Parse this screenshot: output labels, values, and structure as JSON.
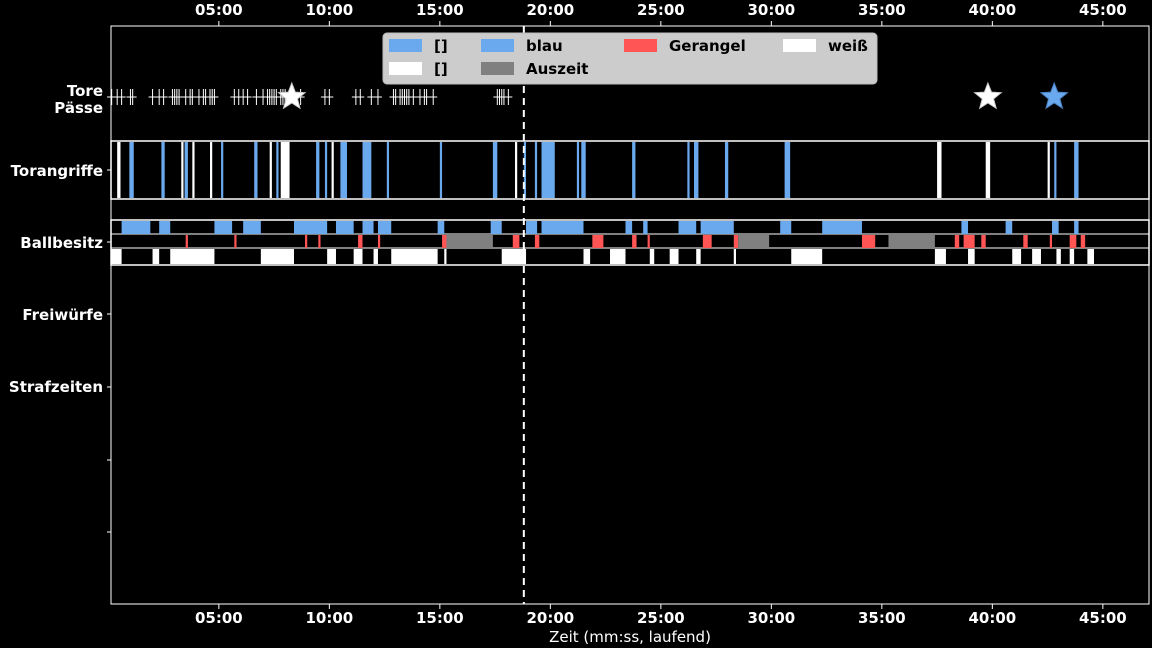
{
  "chart_data": {
    "type": "timeline",
    "xlabel": "Zeit (mm:ss, laufend)",
    "x_unit": "minutes",
    "xlim": [
      0,
      47
    ],
    "x_ticks": [
      {
        "value": 5,
        "label": "05:00"
      },
      {
        "value": 10,
        "label": "10:00"
      },
      {
        "value": 15,
        "label": "15:00"
      },
      {
        "value": 20,
        "label": "20:00"
      },
      {
        "value": 25,
        "label": "25:00"
      },
      {
        "value": 30,
        "label": "30:00"
      },
      {
        "value": 35,
        "label": "35:00"
      },
      {
        "value": 40,
        "label": "40:00"
      },
      {
        "value": 45,
        "label": "45:00"
      }
    ],
    "halftime_marker": 18.8,
    "row_labels": {
      "tore_passe": "Tore\nPässe",
      "torangriffe": "Torangriffe",
      "ballbesitz": "Ballbesitz",
      "freiwuerfe": "Freiwürfe",
      "strafzeiten": "Strafzeiten"
    },
    "colors": {
      "blau": "#6aa9ee",
      "weiss": "#ffffff",
      "gerangel": "#ff5555",
      "auszeit": "#808080",
      "background": "#000000"
    },
    "legend": {
      "placement": "top-center",
      "entries": [
        {
          "label": "[]",
          "color": "#6aa9ee"
        },
        {
          "label": "[]",
          "color": "#ffffff"
        },
        {
          "label": "blau",
          "color": "#6aa9ee"
        },
        {
          "label": "Auszeit",
          "color": "#808080"
        },
        {
          "label": "Gerangel",
          "color": "#ff5555"
        },
        {
          "label": "weiß",
          "color": "#ffffff"
        }
      ]
    },
    "goals": [
      {
        "team": "weiss",
        "t": 8.3
      },
      {
        "team": "weiss",
        "t": 39.8
      },
      {
        "team": "blau",
        "t": 42.8
      }
    ],
    "passes": [
      0.15,
      0.4,
      0.6,
      1.0,
      1.1,
      2.0,
      2.3,
      2.5,
      2.9,
      3.0,
      3.1,
      3.2,
      3.5,
      3.7,
      3.8,
      4.1,
      4.3,
      4.4,
      4.6,
      4.7,
      4.8,
      5.7,
      5.9,
      6.1,
      6.3,
      6.7,
      7.0,
      7.2,
      7.3,
      7.4,
      7.5,
      7.6,
      7.8,
      7.9,
      8.0,
      8.7,
      9.8,
      10.0,
      11.2,
      11.4,
      11.9,
      12.2,
      12.9,
      13.0,
      13.2,
      13.3,
      13.4,
      13.5,
      13.6,
      13.8,
      14.1,
      14.3,
      14.4,
      14.7,
      17.6,
      17.7,
      17.8,
      17.9,
      18.1
    ],
    "attacks": [
      {
        "team": "weiss",
        "start": 0.4,
        "end": 0.55
      },
      {
        "team": "blau",
        "start": 0.95,
        "end": 1.15
      },
      {
        "team": "blau",
        "start": 2.4,
        "end": 2.55
      },
      {
        "team": "weiss",
        "start": 3.3,
        "end": 3.4
      },
      {
        "team": "blau",
        "start": 3.45,
        "end": 3.6
      },
      {
        "team": "weiss",
        "start": 3.8,
        "end": 3.9
      },
      {
        "team": "weiss",
        "start": 4.6,
        "end": 4.7
      },
      {
        "team": "blau",
        "start": 5.1,
        "end": 5.2
      },
      {
        "team": "blau",
        "start": 6.6,
        "end": 6.75
      },
      {
        "team": "weiss",
        "start": 7.3,
        "end": 7.4
      },
      {
        "team": "blau",
        "start": 7.6,
        "end": 7.7
      },
      {
        "team": "weiss",
        "start": 7.8,
        "end": 8.2
      },
      {
        "team": "blau",
        "start": 9.4,
        "end": 9.55
      },
      {
        "team": "blau",
        "start": 9.8,
        "end": 9.9
      },
      {
        "team": "weiss",
        "start": 10.1,
        "end": 10.2
      },
      {
        "team": "blau",
        "start": 10.5,
        "end": 10.8
      },
      {
        "team": "blau",
        "start": 11.5,
        "end": 11.9
      },
      {
        "team": "blau",
        "start": 12.6,
        "end": 12.7
      },
      {
        "team": "blau",
        "start": 15.0,
        "end": 15.1
      },
      {
        "team": "blau",
        "start": 17.4,
        "end": 17.6
      },
      {
        "team": "weiss",
        "start": 18.4,
        "end": 18.5
      },
      {
        "team": "blau",
        "start": 18.8,
        "end": 18.9
      },
      {
        "team": "blau",
        "start": 19.3,
        "end": 19.4
      },
      {
        "team": "blau",
        "start": 19.6,
        "end": 20.2
      },
      {
        "team": "blau",
        "start": 21.2,
        "end": 21.3
      },
      {
        "team": "blau",
        "start": 21.4,
        "end": 21.6
      },
      {
        "team": "blau",
        "start": 23.7,
        "end": 23.85
      },
      {
        "team": "blau",
        "start": 26.2,
        "end": 26.3
      },
      {
        "team": "blau",
        "start": 26.5,
        "end": 26.7
      },
      {
        "team": "blau",
        "start": 27.9,
        "end": 28.05
      },
      {
        "team": "blau",
        "start": 30.6,
        "end": 30.85
      },
      {
        "team": "weiss",
        "start": 37.5,
        "end": 37.7
      },
      {
        "team": "weiss",
        "start": 39.7,
        "end": 39.9
      },
      {
        "team": "weiss",
        "start": 42.5,
        "end": 42.6
      },
      {
        "team": "blau",
        "start": 42.8,
        "end": 42.9
      },
      {
        "team": "blau",
        "start": 43.7,
        "end": 43.9
      }
    ],
    "possession": {
      "blau": [
        {
          "start": 0.6,
          "end": 1.9
        },
        {
          "start": 2.3,
          "end": 2.8
        },
        {
          "start": 4.8,
          "end": 5.6
        },
        {
          "start": 6.1,
          "end": 6.9
        },
        {
          "start": 8.4,
          "end": 9.9
        },
        {
          "start": 10.3,
          "end": 11.1
        },
        {
          "start": 11.5,
          "end": 12.0
        },
        {
          "start": 12.2,
          "end": 12.8
        },
        {
          "start": 14.9,
          "end": 15.2
        },
        {
          "start": 17.3,
          "end": 17.8
        },
        {
          "start": 18.9,
          "end": 19.4
        },
        {
          "start": 19.6,
          "end": 21.5
        },
        {
          "start": 23.4,
          "end": 23.7
        },
        {
          "start": 24.2,
          "end": 24.4
        },
        {
          "start": 25.8,
          "end": 26.6
        },
        {
          "start": 26.8,
          "end": 27.5
        },
        {
          "start": 27.4,
          "end": 28.3
        },
        {
          "start": 30.4,
          "end": 30.9
        },
        {
          "start": 32.3,
          "end": 34.1
        },
        {
          "start": 38.6,
          "end": 38.9
        },
        {
          "start": 40.6,
          "end": 40.9
        },
        {
          "start": 42.7,
          "end": 43.0
        },
        {
          "start": 43.7,
          "end": 43.9
        }
      ],
      "gerangel": [
        {
          "start": 3.5,
          "end": 3.6
        },
        {
          "start": 5.7,
          "end": 5.8
        },
        {
          "start": 8.9,
          "end": 9.0
        },
        {
          "start": 9.5,
          "end": 9.6
        },
        {
          "start": 11.3,
          "end": 11.5
        },
        {
          "start": 12.2,
          "end": 12.3
        },
        {
          "start": 15.1,
          "end": 15.3
        },
        {
          "start": 18.3,
          "end": 18.6
        },
        {
          "start": 19.3,
          "end": 19.5
        },
        {
          "start": 21.9,
          "end": 22.4
        },
        {
          "start": 23.7,
          "end": 23.9
        },
        {
          "start": 24.4,
          "end": 24.5
        },
        {
          "start": 26.9,
          "end": 27.3
        },
        {
          "start": 28.3,
          "end": 28.5
        },
        {
          "start": 34.1,
          "end": 34.7
        },
        {
          "start": 38.3,
          "end": 38.5
        },
        {
          "start": 38.7,
          "end": 39.2
        },
        {
          "start": 39.5,
          "end": 39.7
        },
        {
          "start": 41.4,
          "end": 41.6
        },
        {
          "start": 42.6,
          "end": 42.7
        },
        {
          "start": 43.5,
          "end": 43.8
        },
        {
          "start": 44.0,
          "end": 44.2
        }
      ],
      "auszeit": [
        {
          "start": 15.3,
          "end": 17.4
        },
        {
          "start": 28.5,
          "end": 29.9
        },
        {
          "start": 35.3,
          "end": 37.4
        }
      ],
      "weiss": [
        {
          "start": 0.1,
          "end": 0.6
        },
        {
          "start": 2.0,
          "end": 2.3
        },
        {
          "start": 2.8,
          "end": 4.8
        },
        {
          "start": 6.9,
          "end": 8.4
        },
        {
          "start": 9.9,
          "end": 10.3
        },
        {
          "start": 11.1,
          "end": 11.5
        },
        {
          "start": 12.0,
          "end": 12.2
        },
        {
          "start": 12.8,
          "end": 14.9
        },
        {
          "start": 15.2,
          "end": 15.3
        },
        {
          "start": 17.8,
          "end": 18.9
        },
        {
          "start": 21.5,
          "end": 21.8
        },
        {
          "start": 22.7,
          "end": 23.4
        },
        {
          "start": 24.5,
          "end": 24.7
        },
        {
          "start": 25.4,
          "end": 25.8
        },
        {
          "start": 26.6,
          "end": 26.8
        },
        {
          "start": 28.3,
          "end": 28.4
        },
        {
          "start": 30.9,
          "end": 32.3
        },
        {
          "start": 37.4,
          "end": 37.9
        },
        {
          "start": 38.9,
          "end": 39.2
        },
        {
          "start": 40.9,
          "end": 41.3
        },
        {
          "start": 41.8,
          "end": 42.2
        },
        {
          "start": 42.9,
          "end": 43.1
        },
        {
          "start": 43.5,
          "end": 43.7
        },
        {
          "start": 44.3,
          "end": 44.6
        }
      ]
    }
  }
}
